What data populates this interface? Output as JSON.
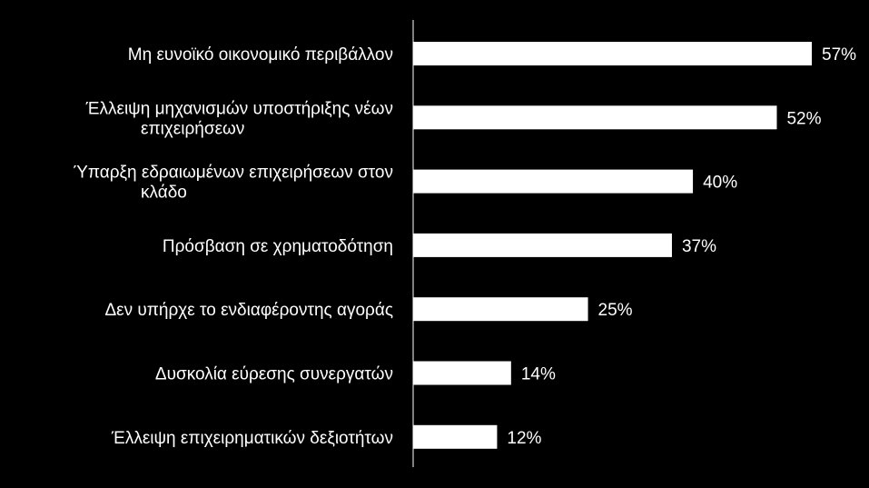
{
  "colors": {
    "background": "#000000",
    "bar": "#ffffff",
    "axis": "#ffffff",
    "text": "#ffffff"
  },
  "chart_data": {
    "type": "bar",
    "orientation": "horizontal",
    "categories": [
      [
        "Μη ευνοϊκό οικονομικό περιβάλλον"
      ],
      [
        "Έλλειψη μηχανισμών υποστήριξης νέων",
        "επιχειρήσεων"
      ],
      [
        "Ύπαρξη εδραιωμένων επιχειρήσεων στον",
        "κλάδο"
      ],
      [
        "Πρόσβαση σε χρηματοδότηση"
      ],
      [
        "Δεν υπήρχε το ενδιαφέροντης αγοράς"
      ],
      [
        "Δυσκολία εύρεσης συνεργατών"
      ],
      [
        "Έλλειψη επιχειρηματικών δεξιοτήτων"
      ]
    ],
    "values": [
      57,
      52,
      40,
      37,
      25,
      14,
      12
    ],
    "value_labels": [
      "57%",
      "52%",
      "40%",
      "37%",
      "25%",
      "14%",
      "12%"
    ],
    "unit": "%",
    "xlim": [
      0,
      60
    ],
    "grid": false,
    "legend": "none"
  }
}
